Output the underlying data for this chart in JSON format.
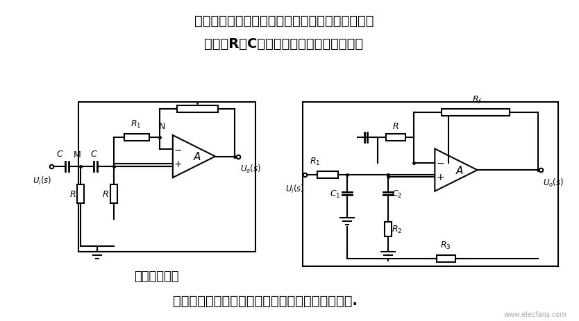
{
  "bg_color": "#ffffff",
  "title_line1": "高通滤波电路与低通滤波电路具有对偶性，把低通",
  "title_line2": "电路中R和C互换即可得到高通滤波电路。",
  "bottom_text": "将高通和低通电路适当组合即可得到带通滤波电路.",
  "label_left": "实用二阶高通",
  "watermark": "www.elecfans.com",
  "fig_width": 8.34,
  "fig_height": 4.64,
  "dpi": 100
}
